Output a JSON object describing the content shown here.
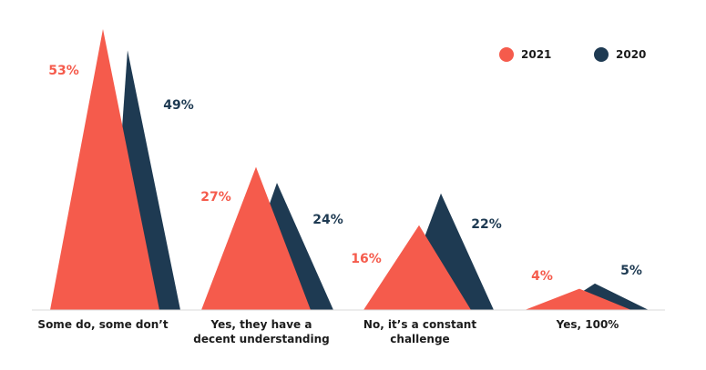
{
  "chart_data": {
    "type": "area",
    "categories": [
      [
        "Some do, some don’t"
      ],
      [
        "Yes, they have a",
        "decent understanding"
      ],
      [
        "No, it’s a constant",
        "challenge"
      ],
      [
        "Yes, 100%"
      ]
    ],
    "series": [
      {
        "name": "2021",
        "color": "#f55b4c",
        "values": [
          53,
          27,
          16,
          4
        ],
        "labels": [
          "53%",
          "27%",
          "16%",
          "4%"
        ]
      },
      {
        "name": "2020",
        "color": "#1e3a52",
        "values": [
          49,
          24,
          22,
          5
        ],
        "labels": [
          "49%",
          "24%",
          "22%",
          "5%"
        ]
      }
    ],
    "ylim": [
      0,
      53
    ],
    "legend_position": "top-right",
    "grid": false
  }
}
